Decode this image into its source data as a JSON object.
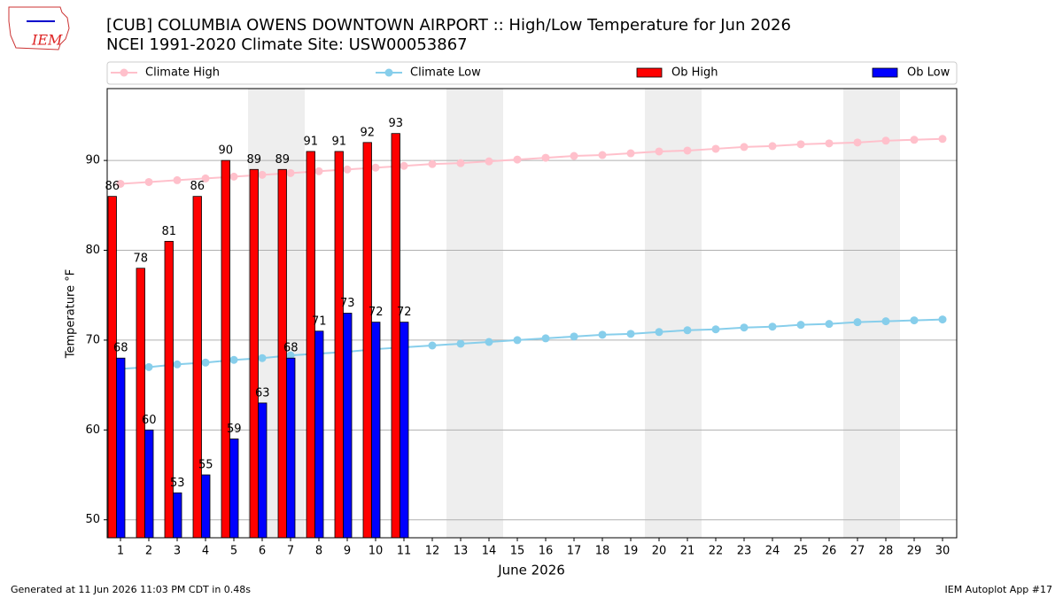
{
  "logo_text": "IEM",
  "chart_data": {
    "type": "bar",
    "title": "[CUB] COLUMBIA OWENS DOWNTOWN AIRPORT :: High/Low Temperature for Jun 2026",
    "subtitle": "NCEI 1991-2020 Climate Site: USW00053867",
    "x_label": "June 2026",
    "y_label": "Temperature °F",
    "footer_left": "Generated at 11 Jun 2026 11:03 PM CDT in 0.48s",
    "footer_right": "IEM Autoplot App #17",
    "categories": [
      "1",
      "2",
      "3",
      "4",
      "5",
      "6",
      "7",
      "8",
      "9",
      "10",
      "11",
      "12",
      "13",
      "14",
      "15",
      "16",
      "17",
      "18",
      "19",
      "20",
      "21",
      "22",
      "23",
      "24",
      "25",
      "26",
      "27",
      "28",
      "29",
      "30"
    ],
    "ylim": [
      48,
      98
    ],
    "yticks": [
      50,
      60,
      70,
      80,
      90
    ],
    "grid": true,
    "legend": "top",
    "shaded_spans": [
      [
        6,
        7
      ],
      [
        13,
        14
      ],
      [
        20,
        21
      ],
      [
        27,
        28
      ]
    ],
    "series": [
      {
        "name": "Climate High",
        "type": "line",
        "color": "#ffc0cb",
        "values": [
          87.4,
          87.6,
          87.8,
          88.0,
          88.2,
          88.4,
          88.6,
          88.8,
          89.0,
          89.2,
          89.4,
          89.6,
          89.7,
          89.9,
          90.1,
          90.3,
          90.5,
          90.6,
          90.8,
          91.0,
          91.1,
          91.3,
          91.5,
          91.6,
          91.8,
          91.9,
          92.0,
          92.2,
          92.3,
          92.4
        ]
      },
      {
        "name": "Climate Low",
        "type": "line",
        "color": "#87ceeb",
        "values": [
          66.8,
          67.0,
          67.3,
          67.5,
          67.8,
          68.0,
          68.3,
          68.5,
          68.7,
          69.0,
          69.2,
          69.4,
          69.6,
          69.8,
          70.0,
          70.2,
          70.4,
          70.6,
          70.7,
          70.9,
          71.1,
          71.2,
          71.4,
          71.5,
          71.7,
          71.8,
          72.0,
          72.1,
          72.2,
          72.3
        ]
      },
      {
        "name": "Ob High",
        "type": "bar",
        "color": "#ff0000",
        "values": [
          86,
          78,
          81,
          86,
          90,
          89,
          89,
          91,
          91,
          92,
          93,
          null,
          null,
          null,
          null,
          null,
          null,
          null,
          null,
          null,
          null,
          null,
          null,
          null,
          null,
          null,
          null,
          null,
          null,
          null
        ]
      },
      {
        "name": "Ob Low",
        "type": "bar",
        "color": "#0000ff",
        "values": [
          68,
          60,
          53,
          55,
          59,
          63,
          68,
          71,
          73,
          72,
          72,
          null,
          null,
          null,
          null,
          null,
          null,
          null,
          null,
          null,
          null,
          null,
          null,
          null,
          null,
          null,
          null,
          null,
          null,
          null
        ]
      }
    ]
  }
}
